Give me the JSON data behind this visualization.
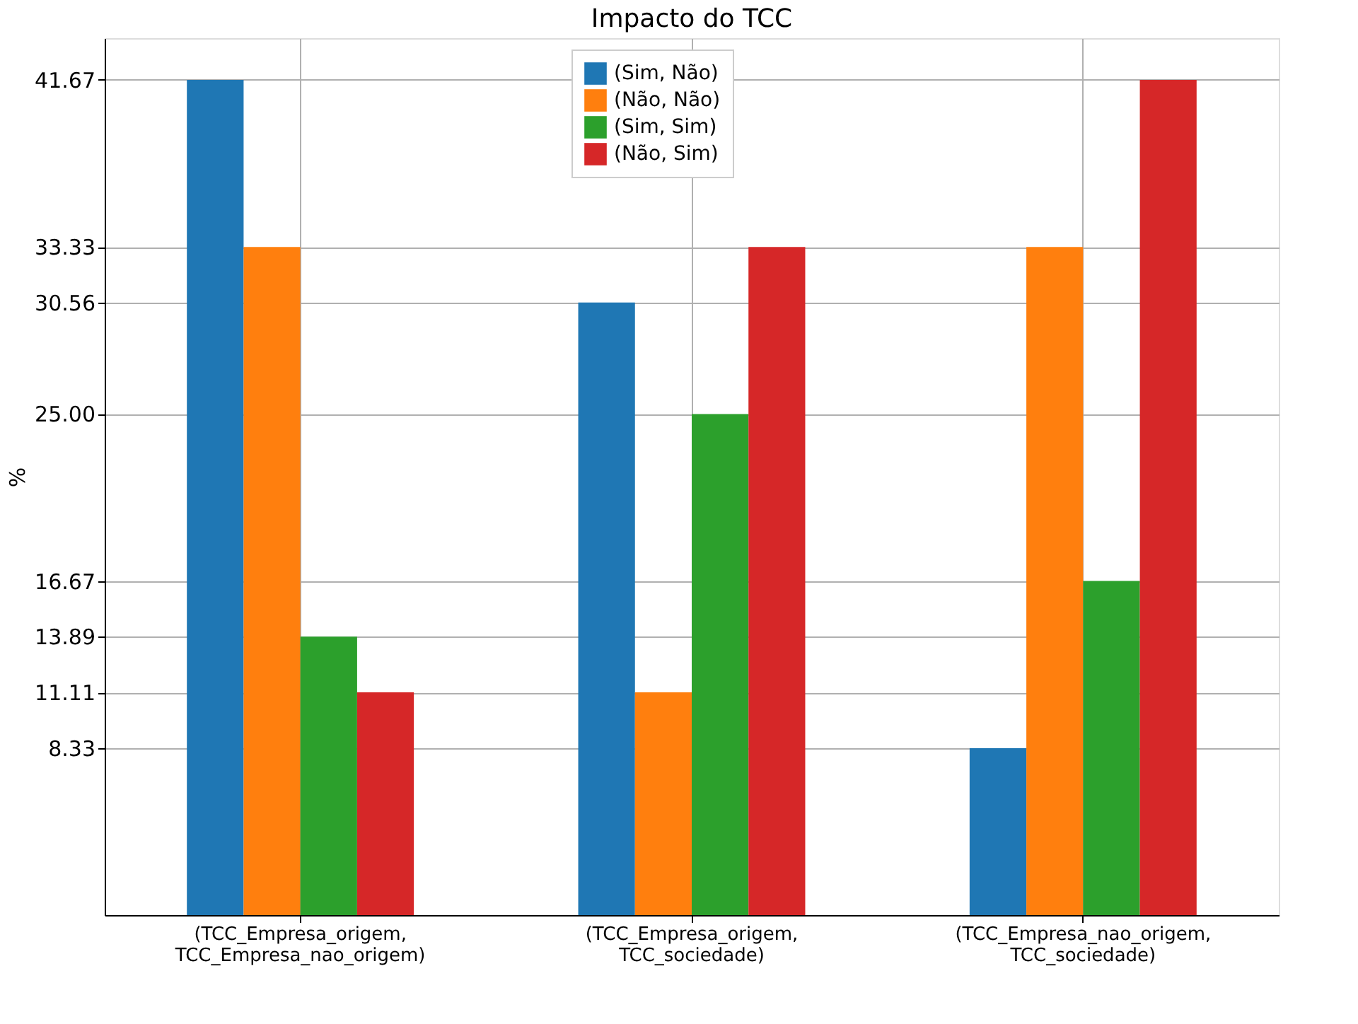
{
  "chart_data": {
    "type": "bar",
    "title": "Impacto do TCC",
    "ylabel": "%",
    "categories": [
      "(TCC_Empresa_origem, TCC_Empresa_nao_origem)",
      "(TCC_Empresa_origem, TCC_sociedade)",
      "(TCC_Empresa_nao_origem, TCC_sociedade)"
    ],
    "series": [
      {
        "name": "(Sim, Não)",
        "color": "#1f77b4",
        "values": [
          41.67,
          30.56,
          8.33
        ]
      },
      {
        "name": "(Não, Não)",
        "color": "#ff7f0e",
        "values": [
          33.33,
          11.11,
          33.33
        ]
      },
      {
        "name": "(Sim, Sim)",
        "color": "#2ca02c",
        "values": [
          13.89,
          25.0,
          16.67
        ]
      },
      {
        "name": "(Não, Sim)",
        "color": "#d62728",
        "values": [
          11.11,
          33.33,
          41.67
        ]
      }
    ],
    "ylim": [
      0,
      43.75
    ],
    "yticks": [
      {
        "value": 8.33,
        "label": "8.33"
      },
      {
        "value": 11.11,
        "label": "11.11"
      },
      {
        "value": 13.89,
        "label": "13.89"
      },
      {
        "value": 16.67,
        "label": "16.67"
      },
      {
        "value": 25.0,
        "label": "25.00"
      },
      {
        "value": 30.56,
        "label": "30.56"
      },
      {
        "value": 33.33,
        "label": "33.33"
      },
      {
        "value": 41.67,
        "label": "41.67"
      }
    ],
    "grid": true,
    "legend": "top"
  }
}
